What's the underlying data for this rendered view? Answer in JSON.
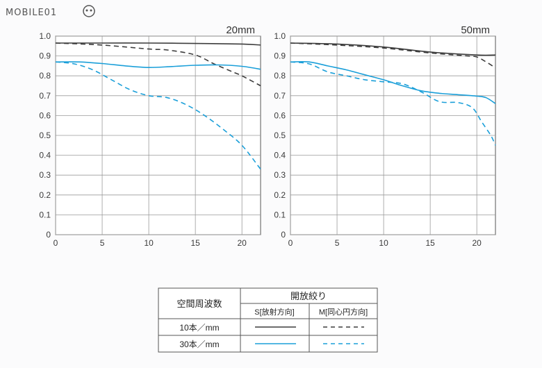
{
  "watermark": {
    "text": "MOBILE01"
  },
  "colors": {
    "sagittal_black": "#3c3c3c",
    "blue": "#1a9fd9",
    "grid": "#9a9a9a"
  },
  "chart_data": [
    {
      "type": "line",
      "title": "20mm",
      "xlim": [
        0,
        22
      ],
      "ylim": [
        0,
        1.0
      ],
      "xticks": [
        0,
        5,
        10,
        15,
        20
      ],
      "yticks": [
        "0",
        "0.1",
        "0.2",
        "0.3",
        "0.4",
        "0.5",
        "0.6",
        "0.7",
        "0.8",
        "0.9",
        "1.0"
      ],
      "grid": true,
      "series": [
        {
          "color": "#3c3c3c",
          "dash": false,
          "x": [
            0,
            5,
            10,
            15,
            20,
            22
          ],
          "y": [
            0.965,
            0.965,
            0.965,
            0.963,
            0.96,
            0.955
          ]
        },
        {
          "color": "#3c3c3c",
          "dash": true,
          "x": [
            0,
            5,
            10,
            12,
            15,
            17,
            19,
            20,
            22
          ],
          "y": [
            0.965,
            0.955,
            0.935,
            0.93,
            0.905,
            0.86,
            0.82,
            0.8,
            0.75
          ]
        },
        {
          "color": "#1a9fd9",
          "dash": false,
          "x": [
            0,
            2.5,
            5,
            7.5,
            10,
            12.5,
            15,
            17.5,
            20,
            22
          ],
          "y": [
            0.87,
            0.87,
            0.862,
            0.85,
            0.842,
            0.847,
            0.853,
            0.855,
            0.848,
            0.833
          ]
        },
        {
          "color": "#1a9fd9",
          "dash": true,
          "x": [
            0,
            2,
            4,
            6,
            8,
            10,
            12,
            14,
            16,
            18,
            20,
            22
          ],
          "y": [
            0.87,
            0.86,
            0.83,
            0.78,
            0.73,
            0.7,
            0.69,
            0.655,
            0.6,
            0.53,
            0.45,
            0.33
          ]
        }
      ]
    },
    {
      "type": "line",
      "title": "50mm",
      "xlim": [
        0,
        22
      ],
      "ylim": [
        0,
        1.0
      ],
      "xticks": [
        0,
        5,
        10,
        15,
        20
      ],
      "yticks": [
        "0",
        "0.1",
        "0.2",
        "0.3",
        "0.4",
        "0.5",
        "0.6",
        "0.7",
        "0.8",
        "0.9",
        "1.0"
      ],
      "grid": true,
      "series": [
        {
          "color": "#3c3c3c",
          "dash": false,
          "x": [
            0,
            5,
            10,
            15,
            20,
            22
          ],
          "y": [
            0.965,
            0.96,
            0.945,
            0.92,
            0.905,
            0.905
          ]
        },
        {
          "color": "#3c3c3c",
          "dash": true,
          "x": [
            0,
            5,
            10,
            15,
            19,
            20,
            21,
            22
          ],
          "y": [
            0.965,
            0.955,
            0.94,
            0.915,
            0.9,
            0.895,
            0.87,
            0.84
          ]
        },
        {
          "color": "#1a9fd9",
          "dash": false,
          "x": [
            0,
            2,
            4,
            6,
            8,
            10,
            12,
            14,
            16,
            18,
            20,
            21,
            22
          ],
          "y": [
            0.87,
            0.87,
            0.85,
            0.83,
            0.805,
            0.78,
            0.75,
            0.725,
            0.712,
            0.705,
            0.698,
            0.69,
            0.66
          ]
        },
        {
          "color": "#1a9fd9",
          "dash": true,
          "x": [
            0,
            2,
            4,
            6,
            8,
            10,
            12,
            14,
            16,
            18,
            19.5,
            20.5,
            21.5,
            22
          ],
          "y": [
            0.87,
            0.86,
            0.82,
            0.8,
            0.78,
            0.77,
            0.76,
            0.72,
            0.67,
            0.665,
            0.64,
            0.57,
            0.5,
            0.45
          ]
        }
      ]
    }
  ],
  "legend": {
    "header_left": "空間周波数",
    "header_right": "開放絞り",
    "col_s": "S[放射方向]",
    "col_m": "M[同心円方向]",
    "rows": [
      {
        "label": "10本／mm",
        "color": "#3c3c3c"
      },
      {
        "label": "30本／mm",
        "color": "#1a9fd9"
      }
    ]
  }
}
